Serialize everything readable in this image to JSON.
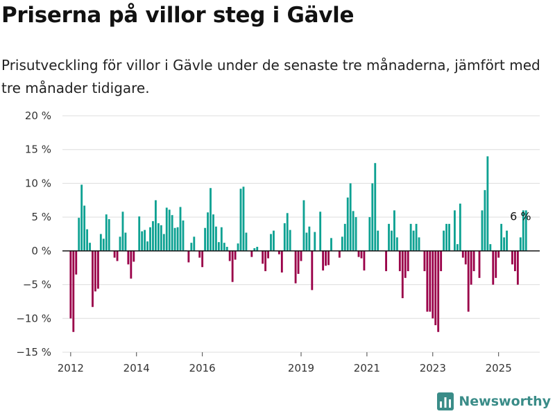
{
  "title": "Priserna på villor steg i Gävle",
  "subtitle": "Prisutveckling för villor i Gävle under de senaste tre månaderna, jämfört med tre månader tidigare.",
  "brand": {
    "name": "Newsworthy",
    "color": "#3a8c88",
    "icon": "bar-chart-logo-icon"
  },
  "colors": {
    "positive": "#0da192",
    "negative": "#9a0049",
    "zero_line": "#111111",
    "grid": "#dddddd"
  },
  "chart_data": {
    "type": "bar",
    "title": "Priserna på villor steg i Gävle",
    "subtitle": "Prisutveckling för villor i Gävle under de senaste tre månaderna, jämfört med tre månader tidigare.",
    "xlabel": "",
    "ylabel": "",
    "x_start": "2012-01",
    "frequency": "monthly",
    "x_ticks": [
      {
        "value": "2012-01",
        "label": "2012"
      },
      {
        "value": "2014-01",
        "label": "2014"
      },
      {
        "value": "2016-01",
        "label": "2016"
      },
      {
        "value": "2019-01",
        "label": "2019"
      },
      {
        "value": "2021-01",
        "label": "2021"
      },
      {
        "value": "2023-01",
        "label": "2023"
      },
      {
        "value": "2025-01",
        "label": "2025"
      }
    ],
    "x_range": [
      "2011-10",
      "2026-04"
    ],
    "ylim": [
      -15,
      20
    ],
    "y_ticks": [
      -15,
      -10,
      -5,
      0,
      5,
      10,
      15,
      20
    ],
    "y_tick_suffix": " %",
    "grid": true,
    "annotation": {
      "x": "2025-09",
      "label": "6 %"
    },
    "values": [
      -10,
      -12,
      -3.5,
      4.9,
      9.8,
      6.7,
      3.2,
      1.2,
      -8.3,
      -6,
      -5.6,
      2.5,
      1.8,
      5.4,
      4.7,
      0,
      -1,
      -1.5,
      2.1,
      5.8,
      2.7,
      -2,
      -4.1,
      -1.6,
      0,
      5.1,
      2.9,
      3.1,
      1.4,
      3.5,
      4.4,
      7.5,
      4.1,
      3.8,
      2.5,
      6.4,
      6.1,
      5.3,
      3.4,
      3.5,
      6.5,
      4.5,
      0.1,
      -1.7,
      1.2,
      2.1,
      0,
      -1,
      -2.4,
      3.4,
      5.7,
      9.3,
      5.4,
      3.6,
      1.3,
      3.5,
      1.2,
      0.6,
      -1.5,
      -4.6,
      -1.3,
      1.1,
      9.2,
      9.5,
      2.7,
      0,
      -0.9,
      0.4,
      0.6,
      0,
      -1.9,
      -3,
      -1.1,
      2.5,
      3,
      0,
      -0.5,
      -3.2,
      4.1,
      5.6,
      3.1,
      0,
      -4.8,
      -3.4,
      -1.5,
      7.5,
      2.7,
      3.6,
      -5.8,
      2.8,
      0,
      5.8,
      -2.9,
      -2.2,
      -2.1,
      1.9,
      0,
      0,
      -1,
      2.1,
      4,
      7.9,
      10,
      5.9,
      5,
      -0.9,
      -1.1,
      -2.9,
      0,
      5,
      10,
      13,
      3,
      0,
      0,
      -3,
      4,
      3,
      6,
      2,
      -3,
      -7,
      -4,
      -3,
      4,
      3,
      4,
      2,
      0,
      -3,
      -9,
      -9,
      -10,
      -11,
      -12,
      -3,
      3,
      4,
      4,
      0,
      6,
      1,
      7,
      -1,
      -2,
      -9,
      -5,
      -3,
      0,
      -4,
      6,
      9,
      14,
      1,
      -5,
      -4,
      -1,
      4,
      2,
      3,
      0,
      -2,
      -3,
      -5,
      2,
      6,
      6
    ]
  }
}
